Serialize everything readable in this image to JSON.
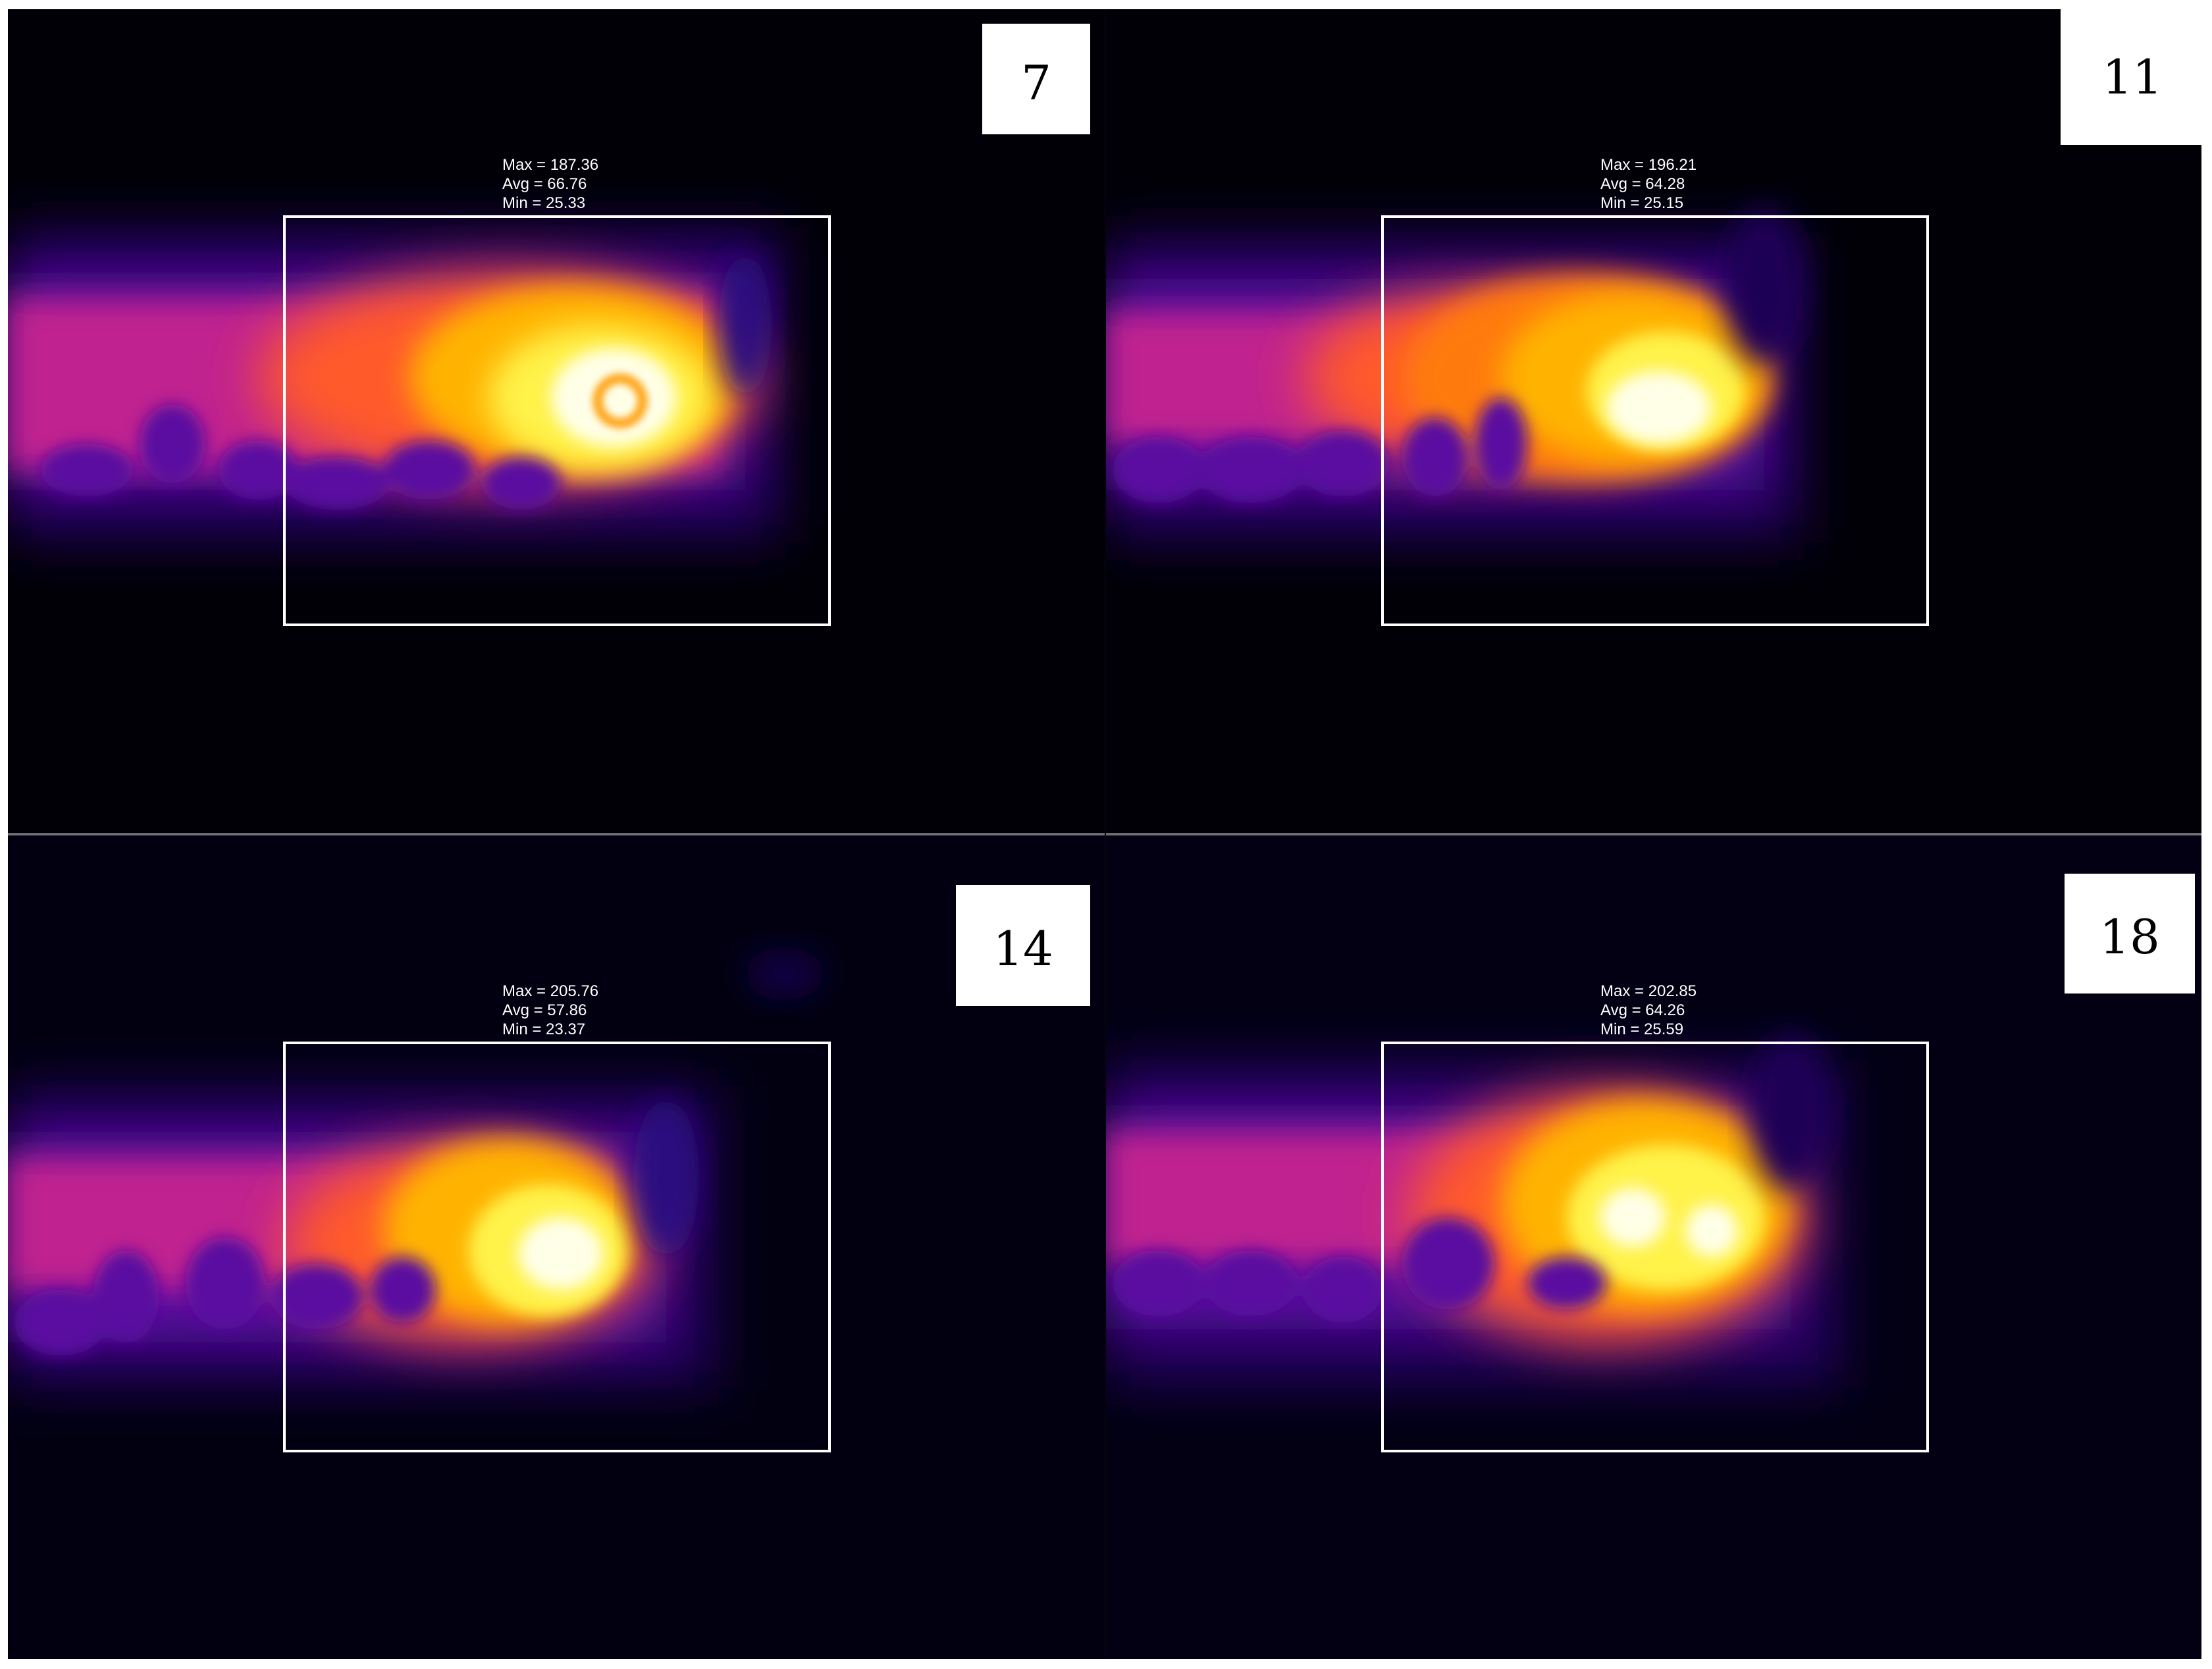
{
  "panels": [
    {
      "label": "7",
      "stats": {
        "max": "Max = 187.36",
        "avg": "Avg = 66.76",
        "min": "Min = 25.33"
      }
    },
    {
      "label": "11",
      "stats": {
        "max": "Max = 196.21",
        "avg": "Avg = 64.28",
        "min": "Min = 25.15"
      }
    },
    {
      "label": "14",
      "stats": {
        "max": "Max = 205.76",
        "avg": "Avg = 57.86",
        "min": "Min = 23.37"
      }
    },
    {
      "label": "18",
      "stats": {
        "max": "Max = 202.85",
        "avg": "Avg = 64.26",
        "min": "Min = 25.59"
      }
    }
  ],
  "colormap": [
    "#000005",
    "#1b0254",
    "#5a10a0",
    "#c0208f",
    "#ff5a2a",
    "#ffb300",
    "#fff24a",
    "#ffffe8"
  ]
}
